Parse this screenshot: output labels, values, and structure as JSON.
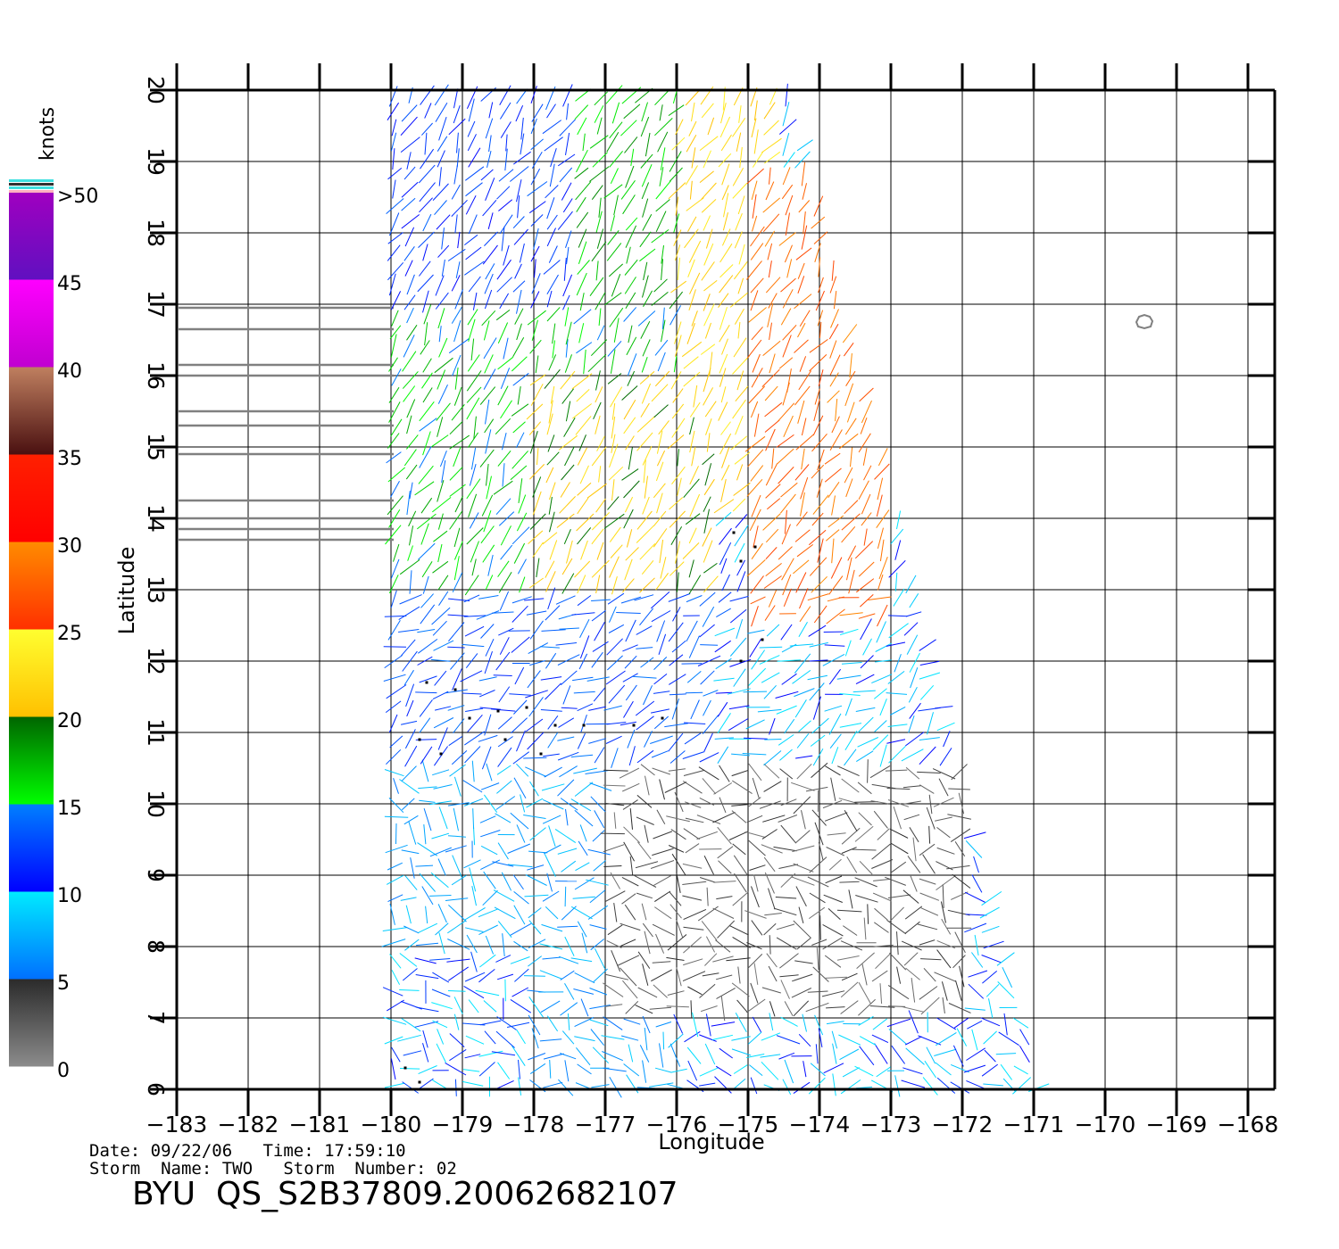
{
  "chart_data": {
    "type": "wind-vector-map",
    "xlabel": "Longitude",
    "ylabel": "Latitude",
    "xlim": [
      -183,
      -167.5
    ],
    "ylim": [
      6,
      20
    ],
    "x_ticks": [
      -183,
      -182,
      -181,
      -180,
      -179,
      -178,
      -177,
      -176,
      -175,
      -174,
      -173,
      -172,
      -171,
      -170,
      -169,
      -168
    ],
    "y_ticks": [
      6,
      7,
      8,
      9,
      10,
      11,
      12,
      13,
      14,
      15,
      16,
      17,
      18,
      19,
      20
    ],
    "x_tick_labels": [
      "−183",
      "−182",
      "−181",
      "−180",
      "−179",
      "−178",
      "−177",
      "−176",
      "−175",
      "−174",
      "−173",
      "−172",
      "−171",
      "−170",
      "−169",
      "−168"
    ],
    "y_tick_labels": [
      "6",
      "7",
      "8",
      "9",
      "10",
      "11",
      "12",
      "13",
      "14",
      "15",
      "16",
      "17",
      "18",
      "19",
      "20"
    ],
    "grid": true,
    "swath": {
      "corners_lonlat": [
        [
          -180,
          20
        ],
        [
          -174.4,
          20
        ],
        [
          -170.9,
          6
        ],
        [
          -180,
          6
        ]
      ],
      "regions": [
        {
          "lon": [
            -180,
            -176.5
          ],
          "lat": [
            17,
            20
          ],
          "speed": 12
        },
        {
          "lon": [
            -177.5,
            -175
          ],
          "lat": [
            16,
            20
          ],
          "speed": 17
        },
        {
          "lon": [
            -176,
            -174.5
          ],
          "lat": [
            14,
            20
          ],
          "speed": 22
        },
        {
          "lon": [
            -175,
            -173
          ],
          "lat": [
            12.5,
            19
          ],
          "speed": 28
        },
        {
          "lon": [
            -180,
            -176
          ],
          "lat": [
            13,
            17
          ],
          "speed": 16
        },
        {
          "lon": [
            -178,
            -175.5
          ],
          "lat": [
            13,
            16
          ],
          "speed": 21
        },
        {
          "lon": [
            -180,
            -175
          ],
          "lat": [
            10.5,
            13
          ],
          "speed": 13
        },
        {
          "lon": [
            -175.5,
            -172.5
          ],
          "lat": [
            10,
            12.5
          ],
          "speed": 9
        },
        {
          "lon": [
            -180,
            -176
          ],
          "lat": [
            6,
            10.5
          ],
          "speed": 7
        },
        {
          "lon": [
            -177,
            -172
          ],
          "lat": [
            7,
            10.5
          ],
          "speed": 3
        },
        {
          "lon": [
            -180,
            -178
          ],
          "lat": [
            6,
            8
          ],
          "speed": 11
        }
      ]
    },
    "rain_flags": [
      [
        -179.5,
        11.7
      ],
      [
        -179.1,
        11.6
      ],
      [
        -178.9,
        11.2
      ],
      [
        -178.5,
        11.3
      ],
      [
        -178.1,
        11.35
      ],
      [
        -177.7,
        11.1
      ],
      [
        -177.3,
        11.1
      ],
      [
        -176.6,
        11.1
      ],
      [
        -176.2,
        11.2
      ],
      [
        -179.6,
        10.9
      ],
      [
        -179.3,
        10.7
      ],
      [
        -178.4,
        10.9
      ],
      [
        -177.9,
        10.7
      ],
      [
        -175.2,
        13.8
      ],
      [
        -174.9,
        13.6
      ],
      [
        -175.1,
        13.4
      ],
      [
        -174.8,
        12.3
      ],
      [
        -175.1,
        12.0
      ],
      [
        -179.8,
        6.3
      ],
      [
        -179.6,
        6.1
      ]
    ],
    "land_outlines": [
      {
        "lon": -169.45,
        "lat": 16.75
      }
    ],
    "coast_lines_lat": [
      13.7,
      13.85,
      14.0,
      14.25,
      14.9,
      15.3,
      15.5,
      16.0,
      16.15,
      16.65,
      16.95
    ],
    "colorbar": {
      "title": "knots",
      "labels": [
        "0",
        "5",
        "10",
        "15",
        "20",
        "25",
        "30",
        "35",
        "40",
        "45",
        ">50"
      ],
      "bands": [
        {
          "from": 0,
          "to": 5,
          "top": "#2a2a2a",
          "bottom": "#8c8c8c"
        },
        {
          "from": 5,
          "to": 10,
          "top": "#00ecff",
          "bottom": "#0070ff"
        },
        {
          "from": 10,
          "to": 15,
          "top": "#0080ff",
          "bottom": "#0000ff"
        },
        {
          "from": 15,
          "to": 20,
          "top": "#006400",
          "bottom": "#00ff00"
        },
        {
          "from": 20,
          "to": 25,
          "top": "#ffff30",
          "bottom": "#ffc000"
        },
        {
          "from": 25,
          "to": 30,
          "top": "#ff8c00",
          "bottom": "#ff3000"
        },
        {
          "from": 30,
          "to": 35,
          "top": "#ff2000",
          "bottom": "#ff0000"
        },
        {
          "from": 35,
          "to": 40,
          "top": "#c08060",
          "bottom": "#4a1010"
        },
        {
          "from": 40,
          "to": 45,
          "top": "#ff00ff",
          "bottom": "#c000d0"
        },
        {
          "from": 45,
          "to": 50,
          "top": "#a000c0",
          "bottom": "#6010c0"
        }
      ]
    }
  },
  "footer": {
    "date_line": "Date: 09/22/06   Time: 17:59:10",
    "storm_line": "Storm  Name: TWO   Storm  Number: 02",
    "product_id": "BYU  QS_S2B37809.20062682107"
  }
}
